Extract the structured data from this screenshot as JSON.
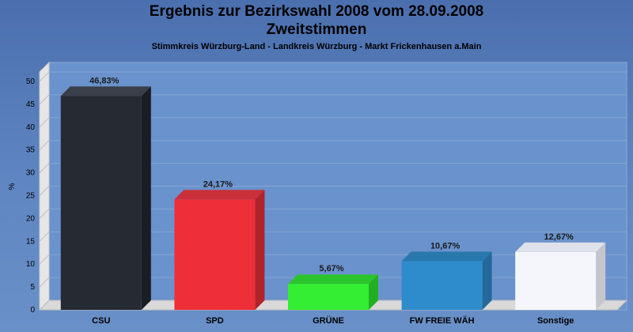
{
  "header": {
    "title_line1": "Ergebnis zur Bezirkswahl 2008 vom 28.09.2008",
    "title_line2": "Zweitstimmen",
    "subtitle": "Stimmkreis Würzburg-Land - Landkreis Würzburg - Markt Frickenhausen a.Main"
  },
  "chart_data": {
    "type": "bar",
    "ylabel": "%",
    "ylim": [
      0,
      50
    ],
    "yticks": [
      0,
      5,
      10,
      15,
      20,
      25,
      30,
      35,
      40,
      45,
      50
    ],
    "grid": true,
    "categories": [
      "CSU",
      "SPD",
      "GRÜNE",
      "FW FREIE WÄH",
      "Sonstige"
    ],
    "values": [
      46.83,
      24.17,
      5.67,
      10.67,
      12.67
    ],
    "value_labels": [
      "46,83%",
      "24,17%",
      "5,67%",
      "10,67%",
      "12,67%"
    ],
    "colors": [
      "#262a33",
      "#ee2e38",
      "#33ee33",
      "#2f8ccc",
      "#f4f6fb"
    ],
    "side_colors": [
      "#1a1d24",
      "#b0232a",
      "#22b022",
      "#23699a",
      "#c4c6cc"
    ],
    "top_colors": [
      "#3a3f4a",
      "#c9303a",
      "#2cc42c",
      "#2877ad",
      "#dfe2ea"
    ]
  }
}
